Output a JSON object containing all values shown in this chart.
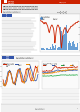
{
  "page_bg": "#ffffff",
  "header_bar_color": "#cc2200",
  "header_logo_bg": "#ffffff",
  "title_bg": "#f0f0f0",
  "title_accent": "#cc2200",
  "section_badge_color": "#3355aa",
  "chart_bg": "#ffffff",
  "chart_border": "#cccccc",
  "bar_color": "#4488cc",
  "line_red": "#cc2200",
  "line_blue": "#3355aa",
  "line_orange": "#ee8800",
  "line_green": "#22aa44",
  "line_pink": "#dd44aa",
  "text_dark": "#222222",
  "text_gray": "#888888",
  "text_light": "#aaaaaa",
  "footer_bg": "#f0f0f0",
  "divider": "#cccccc"
}
